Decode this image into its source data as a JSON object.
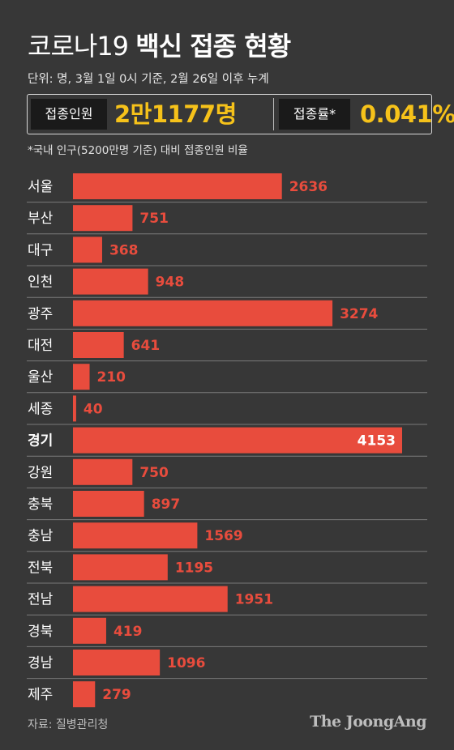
{
  "header": {
    "title_light": "코로나19",
    "title_bold": "백신 접종 현황",
    "subtitle": "단위: 명, 3월 1일 0시 기준, 2월 26일 이후 누계"
  },
  "stats": {
    "vaccinated_label": "접종인원",
    "vaccinated_value": "2만1177명",
    "rate_label": "접종률*",
    "rate_value": "0.041%",
    "highlight_color": "#f6c21a"
  },
  "footnote": "*국내 인구(5200만명 기준) 대비 접종인원 비율",
  "chart_data": {
    "type": "bar",
    "orientation": "horizontal",
    "categories": [
      "서울",
      "부산",
      "대구",
      "인천",
      "광주",
      "대전",
      "울산",
      "세종",
      "경기",
      "강원",
      "충북",
      "충남",
      "전북",
      "전남",
      "경북",
      "경남",
      "제주"
    ],
    "values": [
      2636,
      751,
      368,
      948,
      3274,
      641,
      210,
      40,
      4153,
      750,
      897,
      1569,
      1195,
      1951,
      419,
      1096,
      279
    ],
    "highlight_category": "경기",
    "bar_color": "#e84c3d",
    "label_color": "#e84c3d",
    "highlight_label_color": "#ffffff",
    "xlim": [
      0,
      4153
    ]
  },
  "footer": {
    "source": "자료: 질병관리청",
    "brand": "The JoongAng"
  }
}
